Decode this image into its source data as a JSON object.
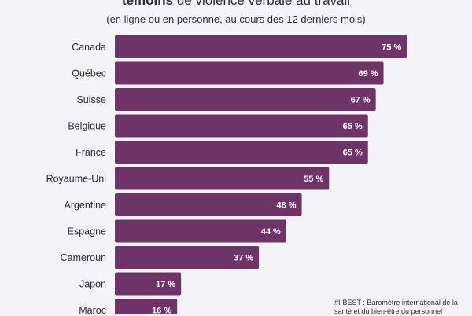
{
  "header": {
    "title_bold": "témoins",
    "title_rest": " de violence verbale au travail",
    "subtitle": "(en ligne ou en personne, au cours des 12 derniers mois)"
  },
  "source_note": "#I-BEST : Baromètre international de la santé et du bien-être du personnel",
  "colors": {
    "bar": "#6e3468",
    "background": "#f4f4f8",
    "label": "#ffffff"
  },
  "chart_data": {
    "type": "bar",
    "orientation": "horizontal",
    "categories": [
      "Canada",
      "Québec",
      "Suisse",
      "Belgique",
      "France",
      "Royaume-Uni",
      "Argentine",
      "Espagne",
      "Cameroun",
      "Japon",
      "Maroc"
    ],
    "values": [
      75,
      69,
      67,
      65,
      65,
      55,
      48,
      44,
      37,
      17,
      16
    ],
    "value_labels": [
      "75 %",
      "69 %",
      "67 %",
      "65 %",
      "65 %",
      "55 %",
      "48 %",
      "44 %",
      "37 %",
      "17 %",
      "16 %"
    ],
    "xlim": [
      0,
      100
    ],
    "grid": false
  }
}
